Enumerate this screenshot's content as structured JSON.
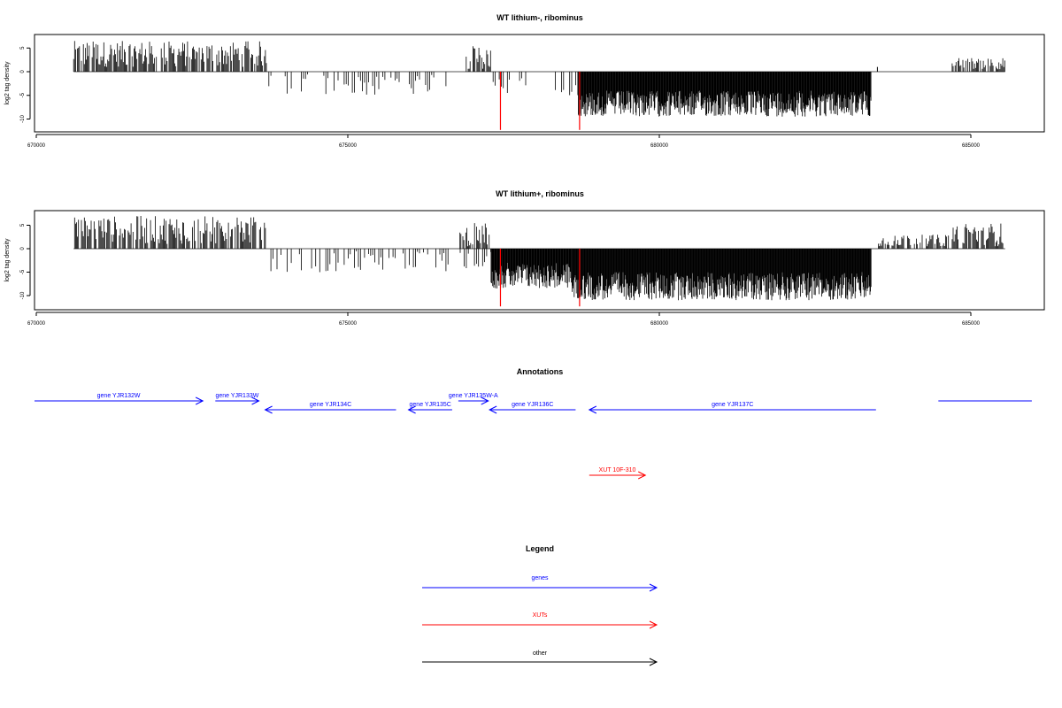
{
  "chart_data": [
    {
      "type": "bar",
      "title": "WT lithium-, ribominus",
      "ylabel": "log2 tag density",
      "xlabel": "",
      "xlim": [
        670000,
        686200
      ],
      "ylim": [
        -12.5,
        8
      ],
      "x_ticks": [
        670000,
        675000,
        680000,
        685000
      ],
      "x_tick_labels": [
        "670000",
        "675000",
        "680000",
        "685000"
      ],
      "y_ticks": [
        5,
        0,
        -5,
        -10
      ],
      "y_tick_labels": [
        "5",
        "0",
        "-5",
        "-10"
      ],
      "baseline": {
        "from": 670600,
        "to": 685550,
        "value": 0
      },
      "series": [
        {
          "color": "#000000",
          "values": [
            {
              "x": [
                670600,
                673700
              ],
              "ymin": 1,
              "ymax": 6.5
            },
            {
              "x": [
                673700,
                676600
              ],
              "ymin": -5,
              "ymax": -0.5
            },
            {
              "x": [
                676900,
                677300
              ],
              "ymin": 0.5,
              "ymax": 5.5
            },
            {
              "x": [
                677300,
                678000
              ],
              "ymin": -4.5,
              "ymax": -0.5
            },
            {
              "x": [
                678300,
                678700
              ],
              "ymin": -5,
              "ymax": -1
            },
            {
              "x": [
                678700,
                683400
              ],
              "ymin": -9.5,
              "ymax": -4
            },
            {
              "x": [
                683500,
                683500
              ],
              "ymin": 1,
              "ymax": 1
            },
            {
              "x": [
                684700,
                685550
              ],
              "ymin": 0.5,
              "ymax": 3
            }
          ]
        }
      ],
      "markers": [
        {
          "x": 677450,
          "y": -12.3,
          "color": "#ff0000"
        },
        {
          "x": 678720,
          "y": -12.3,
          "color": "#ff0000"
        }
      ]
    },
    {
      "type": "bar",
      "title": "WT lithium+, ribominus",
      "ylabel": "log2 tag density",
      "xlabel": "",
      "xlim": [
        670000,
        686200
      ],
      "ylim": [
        -12.5,
        8
      ],
      "x_ticks": [
        670000,
        675000,
        680000,
        685000
      ],
      "x_tick_labels": [
        "670000",
        "675000",
        "680000",
        "685000"
      ],
      "y_ticks": [
        5,
        0,
        -5,
        -10
      ],
      "y_tick_labels": [
        "5",
        "0",
        "-5",
        "-10"
      ],
      "baseline": {
        "from": 670600,
        "to": 685550,
        "value": 0
      },
      "series": [
        {
          "color": "#000000",
          "values": [
            {
              "x": [
                670600,
                673700
              ],
              "ymin": 1,
              "ymax": 7
            },
            {
              "x": [
                673700,
                677300
              ],
              "ymin": -5,
              "ymax": -0.5
            },
            {
              "x": [
                676800,
                677300
              ],
              "ymin": 0.5,
              "ymax": 5.5
            },
            {
              "x": [
                677300,
                678600
              ],
              "ymin": -8.5,
              "ymax": -3
            },
            {
              "x": [
                678600,
                683400
              ],
              "ymin": -11,
              "ymax": -5
            },
            {
              "x": [
                683500,
                684700
              ],
              "ymin": 0.5,
              "ymax": 3
            },
            {
              "x": [
                684700,
                685550
              ],
              "ymin": 0.5,
              "ymax": 5.5
            }
          ]
        }
      ],
      "markers": [
        {
          "x": 677450,
          "y": -12.3,
          "color": "#ff0000"
        },
        {
          "x": 678720,
          "y": -12.3,
          "color": "#ff0000"
        }
      ]
    }
  ],
  "annotations": {
    "title": "Annotations",
    "genes_color": "#0000ff",
    "xuts_color": "#ff0000",
    "features": [
      {
        "label": "gene YJR132W",
        "start": 670000,
        "end": 672700,
        "strand": "+",
        "row": 1,
        "type": "gene"
      },
      {
        "label": "gene YJR133W",
        "start": 672900,
        "end": 673600,
        "strand": "+",
        "row": 1,
        "type": "gene"
      },
      {
        "label": "gene YJR134C",
        "start": 673700,
        "end": 675800,
        "strand": "-",
        "row": 2,
        "type": "gene"
      },
      {
        "label": "gene YJR135C",
        "start": 676000,
        "end": 676700,
        "strand": "-",
        "row": 2,
        "type": "gene"
      },
      {
        "label": "gene YJR135W-A",
        "start": 676800,
        "end": 677280,
        "strand": "+",
        "row": 1,
        "type": "gene"
      },
      {
        "label": "gene YJR136C",
        "start": 677300,
        "end": 678680,
        "strand": "-",
        "row": 2,
        "type": "gene"
      },
      {
        "label": "gene YJR137C",
        "start": 678900,
        "end": 683500,
        "strand": "-",
        "row": 2,
        "type": "gene"
      },
      {
        "label": "",
        "start": 684500,
        "end": 686000,
        "strand": "+",
        "row": 1,
        "type": "gene"
      },
      {
        "label": "XUT 10F-310",
        "start": 678900,
        "end": 679800,
        "strand": "+",
        "row": 3,
        "type": "xut"
      }
    ]
  },
  "legend": {
    "title": "Legend",
    "items": [
      {
        "label": "genes",
        "color": "#0000ff"
      },
      {
        "label": "XUTs",
        "color": "#ff0000"
      },
      {
        "label": "other",
        "color": "#000000"
      }
    ]
  }
}
